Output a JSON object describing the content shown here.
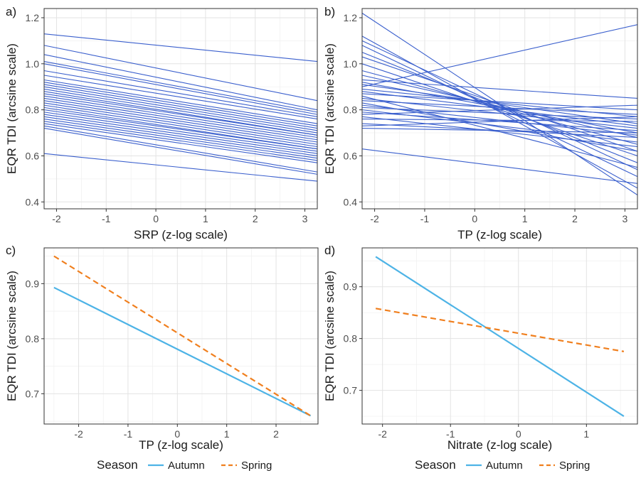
{
  "chart_data": [
    {
      "type": "line",
      "panel": "a)",
      "xlabel": "SRP (z-log scale)",
      "ylabel": "EQR TDI (arcsine scale)",
      "xlim": [
        -2.25,
        3.25
      ],
      "ylim": [
        0.37,
        1.24
      ],
      "xticks": [
        -2,
        -1,
        0,
        1,
        2,
        3
      ],
      "yticks": [
        0.4,
        0.6,
        0.8,
        1.0,
        1.2
      ],
      "xtick_labels": [
        "-2",
        "-1",
        "0",
        "1",
        "2",
        "3"
      ],
      "ytick_labels": [
        "0.4",
        "0.6",
        "0.8",
        "1.0",
        "1.2"
      ],
      "line_color": "#3a5fcd",
      "segments": [
        [
          1.13,
          1.01
        ],
        [
          1.08,
          0.84
        ],
        [
          1.04,
          0.8
        ],
        [
          1.01,
          0.79
        ],
        [
          1.0,
          0.78
        ],
        [
          0.97,
          0.77
        ],
        [
          0.95,
          0.76
        ],
        [
          0.93,
          0.74
        ],
        [
          0.92,
          0.73
        ],
        [
          0.91,
          0.72
        ],
        [
          0.9,
          0.71
        ],
        [
          0.89,
          0.7
        ],
        [
          0.88,
          0.69
        ],
        [
          0.87,
          0.69
        ],
        [
          0.86,
          0.68
        ],
        [
          0.85,
          0.67
        ],
        [
          0.84,
          0.66
        ],
        [
          0.83,
          0.65
        ],
        [
          0.82,
          0.64
        ],
        [
          0.81,
          0.63
        ],
        [
          0.8,
          0.63
        ],
        [
          0.79,
          0.62
        ],
        [
          0.78,
          0.61
        ],
        [
          0.77,
          0.6
        ],
        [
          0.76,
          0.59
        ],
        [
          0.75,
          0.58
        ],
        [
          0.74,
          0.57
        ],
        [
          0.73,
          0.53
        ],
        [
          0.72,
          0.52
        ],
        [
          0.61,
          0.49
        ]
      ]
    },
    {
      "type": "line",
      "panel": "b)",
      "xlabel": "TP (z-log scale)",
      "ylabel": "EQR TDI (arcsine scale)",
      "xlim": [
        -2.25,
        3.25
      ],
      "ylim": [
        0.37,
        1.24
      ],
      "xticks": [
        -2,
        -1,
        0,
        1,
        2,
        3
      ],
      "yticks": [
        0.4,
        0.6,
        0.8,
        1.0,
        1.2
      ],
      "xtick_labels": [
        "-2",
        "-1",
        "0",
        "1",
        "2",
        "3"
      ],
      "ytick_labels": [
        "0.4",
        "0.6",
        "0.8",
        "1.0",
        "1.2"
      ],
      "line_color": "#3a5fcd",
      "segments": [
        [
          1.22,
          0.43
        ],
        [
          1.12,
          0.46
        ],
        [
          1.1,
          0.54
        ],
        [
          1.08,
          0.51
        ],
        [
          1.05,
          0.57
        ],
        [
          1.03,
          0.62
        ],
        [
          1.0,
          0.6
        ],
        [
          0.97,
          0.65
        ],
        [
          0.95,
          0.68
        ],
        [
          0.93,
          0.85
        ],
        [
          0.92,
          0.7
        ],
        [
          0.91,
          0.74
        ],
        [
          0.9,
          1.17
        ],
        [
          0.89,
          0.77
        ],
        [
          0.88,
          0.73
        ],
        [
          0.87,
          0.8
        ],
        [
          0.86,
          0.55
        ],
        [
          0.85,
          0.72
        ],
        [
          0.84,
          0.78
        ],
        [
          0.83,
          0.62
        ],
        [
          0.82,
          0.69
        ],
        [
          0.81,
          0.76
        ],
        [
          0.8,
          0.66
        ],
        [
          0.79,
          0.71
        ],
        [
          0.78,
          0.82
        ],
        [
          0.77,
          0.64
        ],
        [
          0.76,
          0.75
        ],
        [
          0.74,
          0.68
        ],
        [
          0.73,
          0.77
        ],
        [
          0.72,
          0.7
        ],
        [
          0.63,
          0.48
        ]
      ]
    },
    {
      "type": "line",
      "panel": "c)",
      "xlabel": "TP (z-log scale)",
      "ylabel": "EQR TDI (arcsine scale)",
      "xlim": [
        -2.7,
        2.85
      ],
      "ylim": [
        0.645,
        0.965
      ],
      "xticks": [
        -2,
        -1,
        0,
        1,
        2
      ],
      "yticks": [
        0.7,
        0.8,
        0.9
      ],
      "xtick_labels": [
        "-2",
        "-1",
        "0",
        "1",
        "2"
      ],
      "ytick_labels": [
        "0.7",
        "0.8",
        "0.9"
      ],
      "series": [
        {
          "name": "Autumn",
          "color": "#4db3e6",
          "dash": "solid",
          "x": [
            -2.5,
            2.7
          ],
          "y": [
            0.893,
            0.66
          ]
        },
        {
          "name": "Spring",
          "color": "#f07f1e",
          "dash": "dashed",
          "x": [
            -2.5,
            2.7
          ],
          "y": [
            0.95,
            0.66
          ]
        }
      ],
      "legend": {
        "title": "Season",
        "position": "bottom",
        "entries": [
          "Autumn",
          "Spring"
        ]
      }
    },
    {
      "type": "line",
      "panel": "d)",
      "xlabel": "Nitrate (z-log scale)",
      "ylabel": "EQR TDI (arcsine scale)",
      "xlim": [
        -2.3,
        1.75
      ],
      "ylim": [
        0.635,
        0.975
      ],
      "xticks": [
        -2,
        -1,
        0,
        1
      ],
      "yticks": [
        0.7,
        0.8,
        0.9
      ],
      "xtick_labels": [
        "-2",
        "-1",
        "0",
        "1"
      ],
      "ytick_labels": [
        "0.7",
        "0.8",
        "0.9"
      ],
      "series": [
        {
          "name": "Autumn",
          "color": "#4db3e6",
          "dash": "solid",
          "x": [
            -2.1,
            1.55
          ],
          "y": [
            0.958,
            0.65
          ]
        },
        {
          "name": "Spring",
          "color": "#f07f1e",
          "dash": "dashed",
          "x": [
            -2.1,
            1.55
          ],
          "y": [
            0.858,
            0.775
          ]
        }
      ],
      "legend": {
        "title": "Season",
        "position": "bottom",
        "entries": [
          "Autumn",
          "Spring"
        ]
      }
    }
  ]
}
